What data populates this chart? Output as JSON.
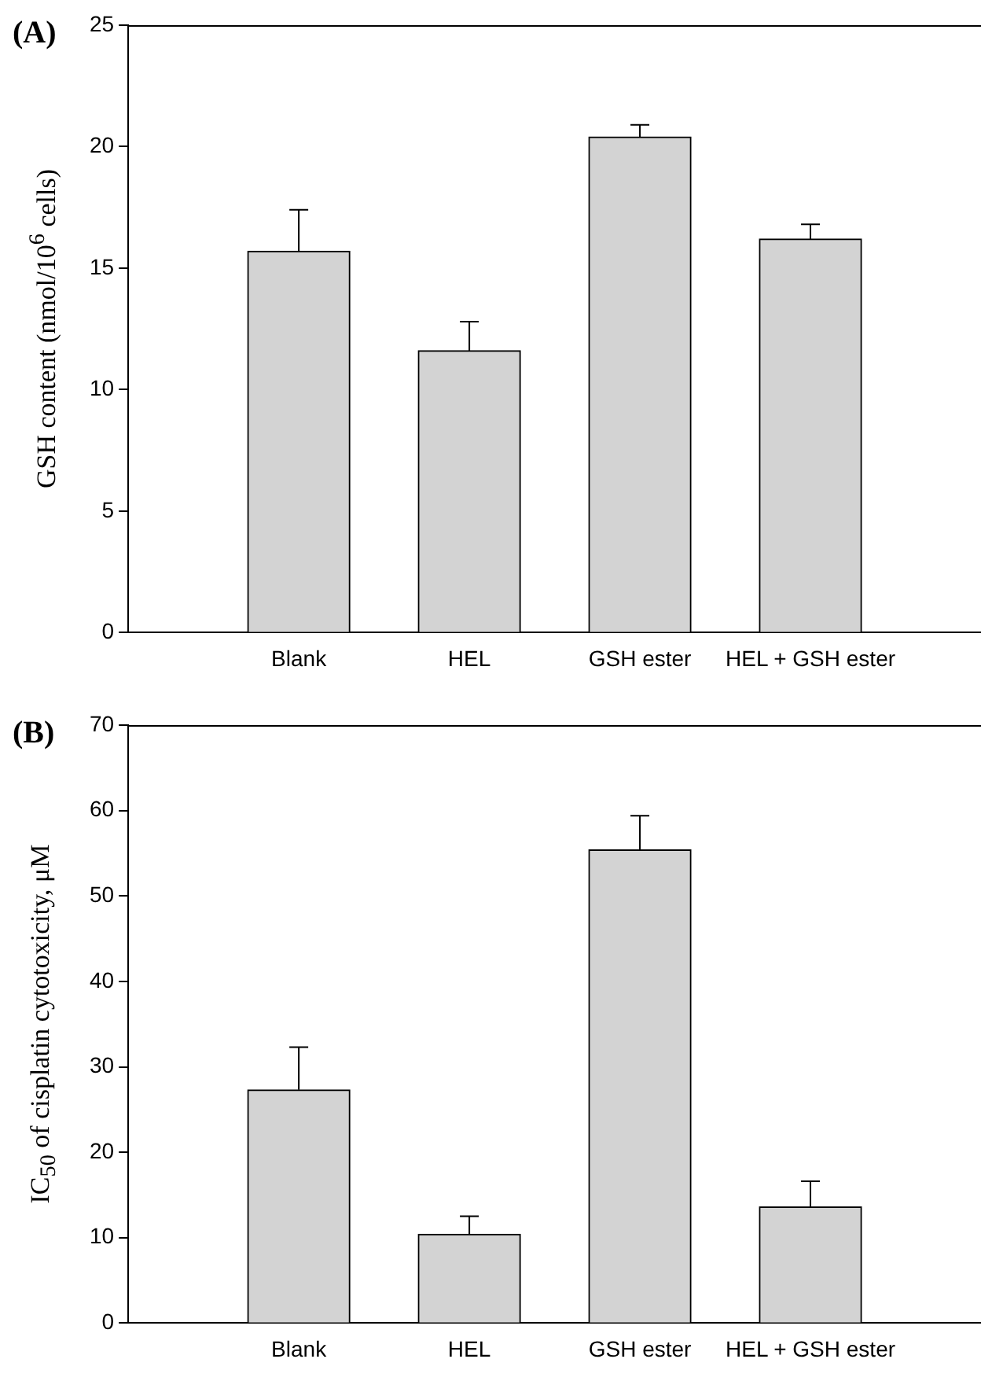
{
  "chart_data": [
    {
      "type": "bar",
      "title": "(A)",
      "ylabel": "GSH content (nmol/10$^{6}$ cells)",
      "categories": [
        "Blank",
        "HEL",
        "GSH ester",
        "HEL + GSH ester"
      ],
      "values": [
        15.7,
        11.6,
        20.4,
        16.2
      ],
      "errors": [
        [
          15.7,
          17.4
        ],
        [
          11.6,
          12.8
        ],
        [
          20.4,
          20.9
        ],
        [
          16.2,
          16.8
        ]
      ],
      "color": "#d3d3d3",
      "ylim": [
        0,
        25
      ],
      "yticks": [
        0,
        5,
        10,
        15,
        20,
        25
      ],
      "grid": false,
      "legend": false
    },
    {
      "type": "bar",
      "title": "(B)",
      "ylabel": "IC$_{50}$ of cisplatin cytotoxicity, μM",
      "categories": [
        "Blank",
        "HEL",
        "GSH ester",
        "HEL + GSH ester"
      ],
      "values": [
        27.3,
        10.4,
        55.4,
        13.6
      ],
      "errors": [
        [
          27.3,
          32.3
        ],
        [
          10.4,
          12.5
        ],
        [
          55.4,
          59.4
        ],
        [
          13.6,
          16.6
        ]
      ],
      "color": "#d3d3d3",
      "ylim": [
        0,
        70
      ],
      "yticks": [
        0,
        10,
        20,
        30,
        40,
        50,
        60,
        70
      ],
      "grid": false,
      "legend": false
    }
  ]
}
